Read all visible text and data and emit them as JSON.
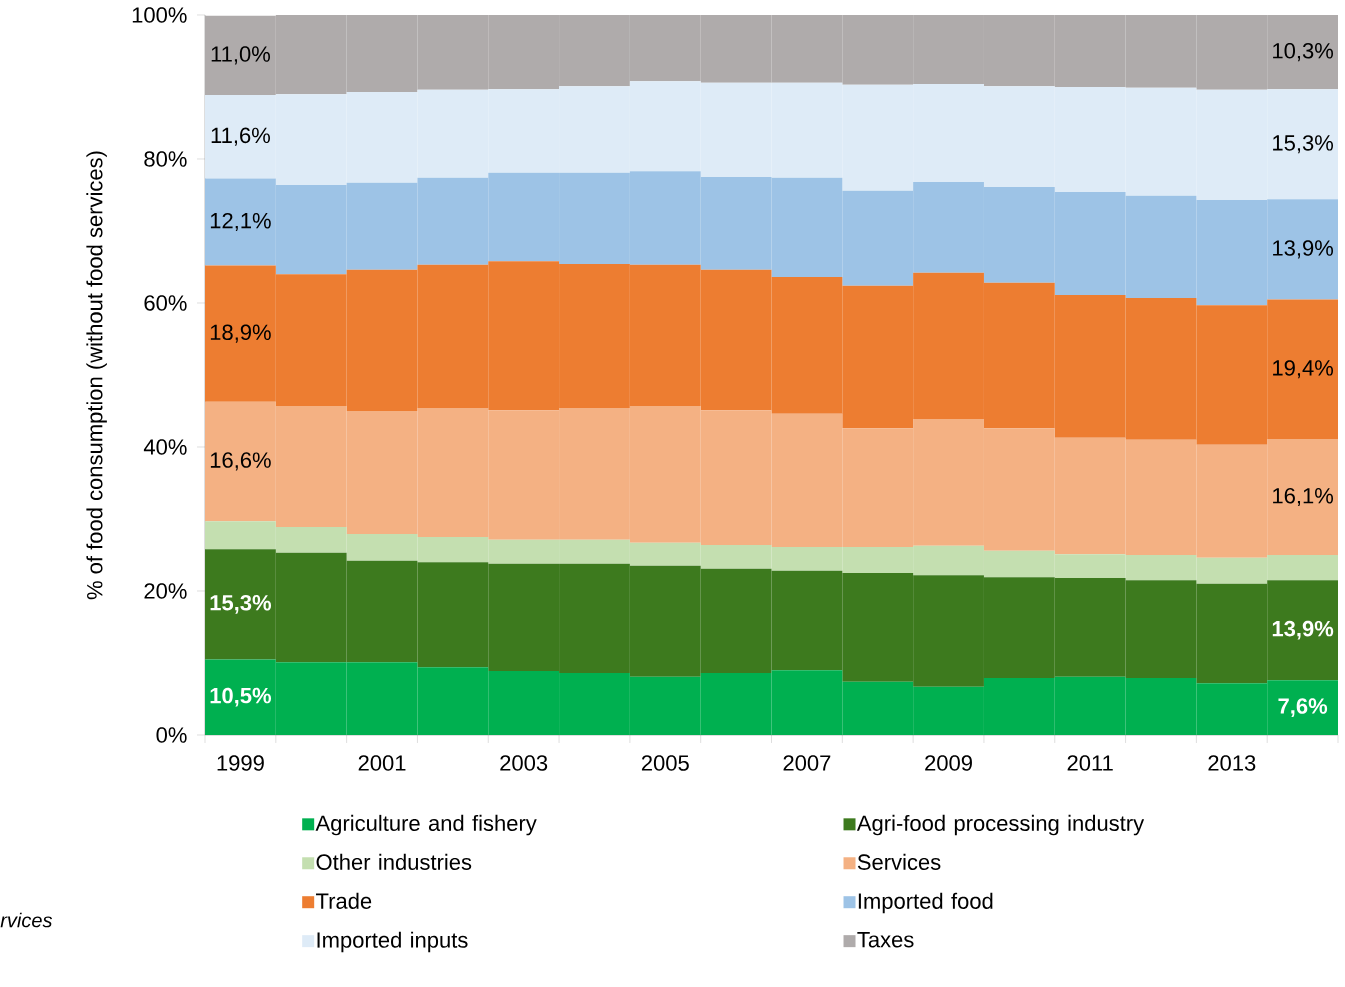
{
  "chart_data": {
    "type": "bar",
    "stacked": true,
    "ylabel": "% of food consumption (without food services)",
    "categories": [
      "1999",
      null,
      "2001",
      null,
      "2003",
      null,
      "2005",
      null,
      "2007",
      null,
      "2009",
      null,
      "2011",
      null,
      "2013",
      null
    ],
    "series": [
      {
        "name": "Agriculture and fishery",
        "color": "#00b050",
        "values": [
          10.5,
          10.1,
          10.1,
          9.4,
          8.9,
          8.6,
          8.1,
          8.6,
          9.0,
          7.4,
          6.7,
          7.9,
          8.1,
          7.9,
          7.2,
          7.6
        ],
        "value_labels": [
          "10,5%",
          null,
          null,
          null,
          null,
          null,
          null,
          null,
          null,
          null,
          null,
          null,
          null,
          null,
          null,
          "7,6%"
        ]
      },
      {
        "name": "Agri-food processing industry",
        "color": "#3d7a1e",
        "values": [
          15.3,
          15.2,
          14.1,
          14.6,
          14.9,
          15.2,
          15.4,
          14.5,
          13.8,
          15.1,
          15.5,
          14.0,
          13.7,
          13.6,
          13.8,
          13.9
        ],
        "value_labels": [
          "15,3%",
          null,
          null,
          null,
          null,
          null,
          null,
          null,
          null,
          null,
          null,
          null,
          null,
          null,
          null,
          "13,9%"
        ]
      },
      {
        "name": "Other industries",
        "color": "#c4dfb0",
        "values": [
          3.9,
          3.6,
          3.7,
          3.5,
          3.3,
          3.3,
          3.2,
          3.3,
          3.3,
          3.6,
          4.1,
          3.7,
          3.3,
          3.5,
          3.6,
          3.5
        ]
      },
      {
        "name": "Services",
        "color": "#f4b183",
        "values": [
          16.6,
          16.8,
          17.1,
          17.9,
          18.0,
          18.3,
          19.0,
          18.7,
          18.5,
          16.5,
          17.6,
          17.0,
          16.2,
          16.0,
          15.7,
          16.1
        ],
        "value_labels": [
          "16,6%",
          null,
          null,
          null,
          null,
          null,
          null,
          null,
          null,
          null,
          null,
          null,
          null,
          null,
          null,
          "16,1%"
        ]
      },
      {
        "name": "Trade",
        "color": "#ed7d31",
        "values": [
          18.9,
          18.3,
          19.6,
          19.9,
          20.7,
          20.0,
          19.6,
          19.5,
          19.0,
          19.8,
          20.3,
          20.2,
          19.8,
          19.7,
          19.4,
          19.4
        ],
        "value_labels": [
          "18,9%",
          null,
          null,
          null,
          null,
          null,
          null,
          null,
          null,
          null,
          null,
          null,
          null,
          null,
          null,
          "19,4%"
        ]
      },
      {
        "name": "Imported food",
        "color": "#9dc3e6",
        "values": [
          12.1,
          12.4,
          12.1,
          12.1,
          12.3,
          12.7,
          13.0,
          12.9,
          13.8,
          13.2,
          12.6,
          13.3,
          14.3,
          14.2,
          14.6,
          13.9
        ],
        "value_labels": [
          "12,1%",
          null,
          null,
          null,
          null,
          null,
          null,
          null,
          null,
          null,
          null,
          null,
          null,
          null,
          null,
          "13,9%"
        ]
      },
      {
        "name": "Imported inputs",
        "color": "#deebf7",
        "values": [
          11.6,
          12.6,
          12.6,
          12.2,
          11.6,
          12.0,
          12.5,
          13.1,
          13.2,
          14.7,
          13.6,
          14.0,
          14.6,
          15.0,
          15.3,
          15.3
        ],
        "value_labels": [
          "11,6%",
          null,
          null,
          null,
          null,
          null,
          null,
          null,
          null,
          null,
          null,
          null,
          null,
          null,
          null,
          "15,3%"
        ]
      },
      {
        "name": "Taxes",
        "color": "#afabab",
        "values": [
          11.0,
          11.0,
          10.7,
          10.4,
          10.3,
          9.9,
          9.2,
          9.4,
          9.4,
          9.7,
          9.6,
          9.9,
          10.0,
          10.1,
          10.4,
          10.3
        ],
        "value_labels": [
          "11,0%",
          null,
          null,
          null,
          null,
          null,
          null,
          null,
          null,
          null,
          null,
          null,
          null,
          null,
          null,
          "10,3%"
        ]
      }
    ],
    "ylim": [
      0,
      100
    ],
    "yticks": [
      {
        "value": 0,
        "label": "0%"
      },
      {
        "value": 20,
        "label": "20%"
      },
      {
        "value": 40,
        "label": "40%"
      },
      {
        "value": 60,
        "label": "60%"
      },
      {
        "value": 80,
        "label": "80%"
      },
      {
        "value": 100,
        "label": "100%"
      }
    ],
    "legend": "bottom",
    "annotations": [
      "*rvices*"
    ]
  }
}
